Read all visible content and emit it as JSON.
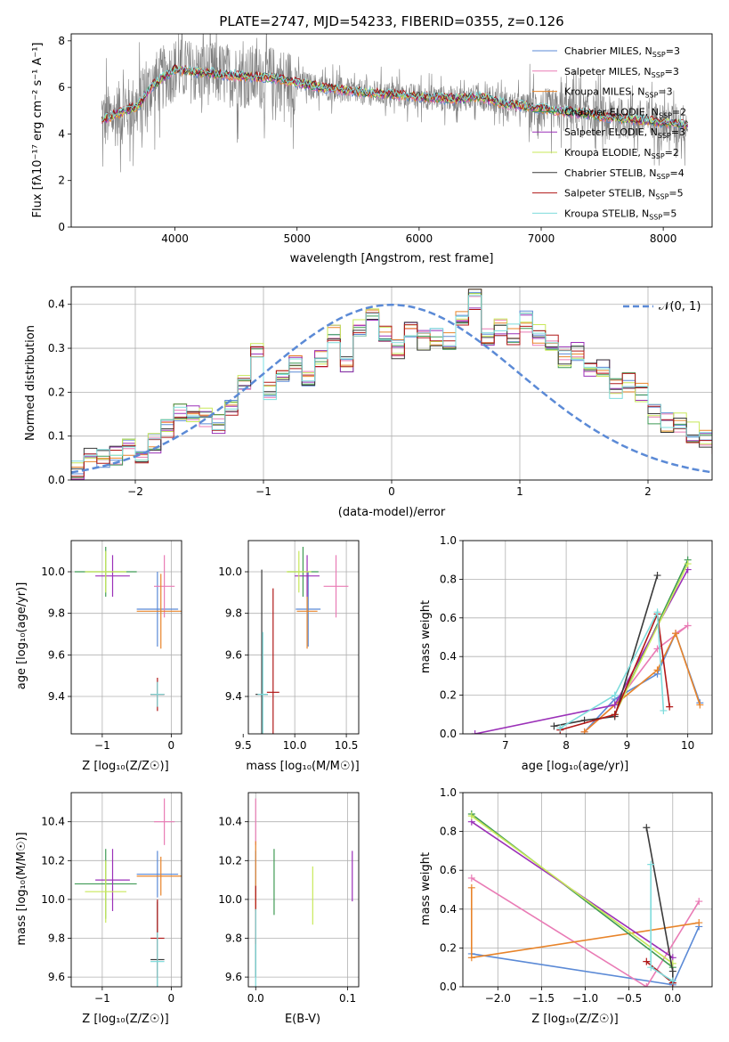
{
  "figure": {
    "title": "PLATE=2747, MJD=54233, FIBERID=0355, z=0.126",
    "spectrum_xlabel": "wavelength [Angstrom, rest frame]",
    "spectrum_ylabel": "Flux [fλ10⁻¹⁷ erg cm⁻² s⁻¹ A⁻¹]",
    "resid_xlabel": "(data-model)/error",
    "resid_ylabel": "Normed distribution",
    "resid_legend": "𝒩(0, 1)",
    "age_label": "age  [log₁₀(age/yr)]",
    "z_label": "Z [log₁₀(Z/Z☉)]",
    "mass_label": "mass [log₁₀(M/M☉)]",
    "ebv_label": "E(B-V)",
    "weight_label": "mass weight"
  },
  "models": [
    {
      "name": "Chabrier MILES, N_SSP=3",
      "color": "#5b8ad6"
    },
    {
      "name": "Salpeter MILES, N_SSP=3",
      "color": "#e97bb5"
    },
    {
      "name": "Kroupa MILES, N_SSP=3",
      "color": "#e8842a"
    },
    {
      "name": "Chabrier ELODIE, N_SSP=2",
      "color": "#3f9a54"
    },
    {
      "name": "Salpeter ELODIE, N_SSP=3",
      "color": "#9b30b8"
    },
    {
      "name": "Kroupa ELODIE, N_SSP=2",
      "color": "#c8e85a"
    },
    {
      "name": "Chabrier STELIB, N_SSP=4",
      "color": "#3a3a3a"
    },
    {
      "name": "Salpeter STELIB, N_SSP=5",
      "color": "#b01818"
    },
    {
      "name": "Kroupa STELIB, N_SSP=5",
      "color": "#7edcdc"
    }
  ],
  "chart_data": [
    {
      "type": "line",
      "name": "spectrum",
      "xlim": [
        3150,
        8400
      ],
      "ylim": [
        0,
        8.3
      ],
      "xticks": [
        4000,
        5000,
        6000,
        7000,
        8000
      ],
      "yticks": [
        0,
        2,
        4,
        6,
        8
      ],
      "data_series": {
        "name": "data",
        "color": "#808080"
      },
      "model_continuum": {
        "x": [
          3400,
          3600,
          3700,
          3800,
          3900,
          4000,
          4100,
          4300,
          4500,
          4800,
          5000,
          5200,
          5500,
          6000,
          6300,
          6500,
          6700,
          7000,
          7300,
          7600,
          8000,
          8200
        ],
        "y": [
          4.6,
          5.0,
          5.2,
          6.0,
          6.4,
          6.8,
          6.7,
          6.6,
          6.5,
          6.4,
          6.2,
          6.0,
          5.8,
          5.6,
          5.5,
          5.6,
          5.3,
          5.1,
          4.9,
          4.7,
          4.5,
          4.4
        ]
      }
    },
    {
      "type": "line",
      "name": "residual-distribution",
      "xlim": [
        -2.5,
        2.5
      ],
      "ylim": [
        0,
        0.44
      ],
      "xticks": [
        -2,
        -1,
        0,
        1,
        2
      ],
      "yticks": [
        0.0,
        0.1,
        0.2,
        0.3,
        0.4
      ],
      "bin_width": 0.1,
      "bin_start": -2.5,
      "histogram": [
        0.025,
        0.055,
        0.05,
        0.055,
        0.075,
        0.06,
        0.085,
        0.115,
        0.15,
        0.155,
        0.14,
        0.13,
        0.165,
        0.215,
        0.29,
        0.2,
        0.245,
        0.27,
        0.23,
        0.275,
        0.335,
        0.26,
        0.35,
        0.385,
        0.33,
        0.3,
        0.35,
        0.32,
        0.33,
        0.32,
        0.36,
        0.41,
        0.33,
        0.35,
        0.33,
        0.36,
        0.33,
        0.31,
        0.28,
        0.29,
        0.26,
        0.25,
        0.21,
        0.22,
        0.2,
        0.15,
        0.13,
        0.13,
        0.11,
        0.09,
        0.085
      ],
      "normal_curve": {
        "name": "𝒩(0, 1)",
        "mean": 0,
        "sigma": 1,
        "color": "#5b8ad6"
      }
    },
    {
      "type": "scatter",
      "name": "age-vs-metallicity",
      "xlim": [
        -1.45,
        0.15
      ],
      "ylim": [
        9.22,
        10.15
      ],
      "xticks": [
        -1,
        0
      ],
      "yticks": [
        9.4,
        9.6,
        9.8,
        10.0
      ],
      "points": [
        {
          "x": -0.2,
          "y": 9.82,
          "xerr": 0.3,
          "yerr": 0.18,
          "model": 0
        },
        {
          "x": -0.1,
          "y": 9.93,
          "xerr": 0.15,
          "yerr": 0.15,
          "model": 1
        },
        {
          "x": -0.15,
          "y": 9.81,
          "xerr": 0.35,
          "yerr": 0.18,
          "model": 2
        },
        {
          "x": -0.95,
          "y": 10.0,
          "xerr": 0.45,
          "yerr": 0.12,
          "model": 3
        },
        {
          "x": -0.85,
          "y": 9.98,
          "xerr": 0.25,
          "yerr": 0.1,
          "model": 4
        },
        {
          "x": -0.95,
          "y": 10.0,
          "xerr": 0.3,
          "yerr": 0.1,
          "model": 5
        },
        {
          "x": -0.2,
          "y": 9.41,
          "xerr": 0.1,
          "yerr": 0.06,
          "model": 6
        },
        {
          "x": -0.2,
          "y": 9.41,
          "xerr": 0.1,
          "yerr": 0.08,
          "model": 7
        },
        {
          "x": -0.2,
          "y": 9.41,
          "xerr": 0.1,
          "yerr": 0.06,
          "model": 8
        }
      ]
    },
    {
      "type": "scatter",
      "name": "age-vs-mass",
      "xlim": [
        9.55,
        10.62
      ],
      "ylim": [
        9.22,
        10.15
      ],
      "xticks": [
        9.5,
        10.0,
        10.5
      ],
      "yticks": [
        9.4,
        9.6,
        9.8,
        10.0
      ],
      "points": [
        {
          "x": 10.13,
          "y": 9.82,
          "xerr": 0.12,
          "yerr": 0.18,
          "model": 0
        },
        {
          "x": 10.4,
          "y": 9.93,
          "xerr": 0.12,
          "yerr": 0.15,
          "model": 1
        },
        {
          "x": 10.12,
          "y": 9.81,
          "xerr": 0.1,
          "yerr": 0.18,
          "model": 2
        },
        {
          "x": 10.08,
          "y": 10.0,
          "xerr": 0.15,
          "yerr": 0.12,
          "model": 3
        },
        {
          "x": 10.12,
          "y": 9.98,
          "xerr": 0.12,
          "yerr": 0.1,
          "model": 4
        },
        {
          "x": 10.04,
          "y": 10.0,
          "xerr": 0.12,
          "yerr": 0.1,
          "model": 5
        },
        {
          "x": 9.68,
          "y": 9.41,
          "xerr": 0.06,
          "yerr": 0.6,
          "model": 6
        },
        {
          "x": 9.79,
          "y": 9.42,
          "xerr": 0.06,
          "yerr": 0.5,
          "model": 7
        },
        {
          "x": 9.69,
          "y": 9.41,
          "xerr": 0.05,
          "yerr": 0.3,
          "model": 8
        }
      ]
    },
    {
      "type": "line",
      "name": "weight-vs-age",
      "xlim": [
        6.3,
        10.4
      ],
      "ylim": [
        0,
        1.0
      ],
      "xticks": [
        7,
        8,
        9,
        10
      ],
      "yticks": [
        0.0,
        0.2,
        0.4,
        0.6,
        0.8,
        1.0
      ],
      "series": [
        {
          "model": 0,
          "x": [
            8.3,
            8.8,
            9.5,
            9.8,
            10.2
          ],
          "y": [
            0.01,
            0.18,
            0.31,
            0.52,
            0.16
          ]
        },
        {
          "model": 1,
          "x": [
            8.3,
            8.8,
            9.5,
            10.0,
            9.8
          ],
          "y": [
            0.01,
            0.15,
            0.44,
            0.56,
            0.52
          ]
        },
        {
          "model": 2,
          "x": [
            8.3,
            8.8,
            9.5,
            9.8,
            10.2
          ],
          "y": [
            0.01,
            0.15,
            0.33,
            0.52,
            0.15
          ]
        },
        {
          "model": 3,
          "x": [
            8.8,
            10.0
          ],
          "y": [
            0.1,
            0.9
          ]
        },
        {
          "model": 4,
          "x": [
            6.5,
            8.8,
            10.0
          ],
          "y": [
            0.0,
            0.15,
            0.85
          ]
        },
        {
          "model": 5,
          "x": [
            8.8,
            10.0
          ],
          "y": [
            0.1,
            0.88
          ]
        },
        {
          "model": 6,
          "x": [
            7.8,
            8.3,
            8.8,
            9.5
          ],
          "y": [
            0.04,
            0.07,
            0.09,
            0.82
          ]
        },
        {
          "model": 7,
          "x": [
            7.9,
            8.8,
            9.5,
            9.7
          ],
          "y": [
            0.02,
            0.1,
            0.62,
            0.14
          ]
        },
        {
          "model": 8,
          "x": [
            7.9,
            8.8,
            9.5,
            9.6
          ],
          "y": [
            0.03,
            0.2,
            0.63,
            0.12
          ]
        }
      ]
    },
    {
      "type": "scatter",
      "name": "mass-vs-metallicity",
      "xlim": [
        -1.45,
        0.15
      ],
      "ylim": [
        9.55,
        10.55
      ],
      "xticks": [
        -1,
        0
      ],
      "yticks": [
        9.6,
        9.8,
        10.0,
        10.2,
        10.4
      ],
      "points": [
        {
          "x": -0.2,
          "y": 10.13,
          "xerr": 0.3,
          "yerr": 0.12,
          "model": 0
        },
        {
          "x": -0.1,
          "y": 10.4,
          "xerr": 0.15,
          "yerr": 0.12,
          "model": 1
        },
        {
          "x": -0.15,
          "y": 10.12,
          "xerr": 0.35,
          "yerr": 0.1,
          "model": 2
        },
        {
          "x": -0.95,
          "y": 10.08,
          "xerr": 0.45,
          "yerr": 0.18,
          "model": 3
        },
        {
          "x": -0.85,
          "y": 10.1,
          "xerr": 0.25,
          "yerr": 0.16,
          "model": 4
        },
        {
          "x": -0.95,
          "y": 10.04,
          "xerr": 0.3,
          "yerr": 0.16,
          "model": 5
        },
        {
          "x": -0.2,
          "y": 9.69,
          "xerr": 0.1,
          "yerr": 0.3,
          "model": 6
        },
        {
          "x": -0.2,
          "y": 9.8,
          "xerr": 0.1,
          "yerr": 0.2,
          "model": 7
        },
        {
          "x": -0.2,
          "y": 9.68,
          "xerr": 0.1,
          "yerr": 0.15,
          "model": 8
        }
      ]
    },
    {
      "type": "scatter",
      "name": "mass-vs-ebv",
      "xlim": [
        -0.008,
        0.112
      ],
      "ylim": [
        9.55,
        10.55
      ],
      "xticks": [
        0.0,
        0.1
      ],
      "yticks": [
        9.6,
        9.8,
        10.0,
        10.2,
        10.4
      ],
      "points": [
        {
          "x": 0.0,
          "y": 10.13,
          "yerr": 0.12,
          "model": 0
        },
        {
          "x": 0.0,
          "y": 10.4,
          "yerr": 0.12,
          "model": 1
        },
        {
          "x": 0.0,
          "y": 10.12,
          "yerr": 0.18,
          "model": 2
        },
        {
          "x": 0.02,
          "y": 10.09,
          "yerr": 0.17,
          "model": 3
        },
        {
          "x": 0.105,
          "y": 10.12,
          "yerr": 0.13,
          "model": 4
        },
        {
          "x": 0.062,
          "y": 10.02,
          "yerr": 0.15,
          "model": 5
        },
        {
          "x": 0.0,
          "y": 9.7,
          "yerr": 0.1,
          "model": 6
        },
        {
          "x": 0.0,
          "y": 9.92,
          "yerr": 0.15,
          "model": 7
        },
        {
          "x": 0.0,
          "y": 9.75,
          "yerr": 0.2,
          "model": 8
        }
      ]
    },
    {
      "type": "line",
      "name": "weight-vs-metallicity",
      "xlim": [
        -2.4,
        0.45
      ],
      "ylim": [
        0,
        1.0
      ],
      "xticks": [
        -2.0,
        -1.5,
        -1.0,
        -0.5,
        0.0
      ],
      "yticks": [
        0.0,
        0.2,
        0.4,
        0.6,
        0.8,
        1.0
      ],
      "series": [
        {
          "model": 0,
          "x": [
            -2.3,
            0.0,
            0.3
          ],
          "y": [
            0.17,
            0.01,
            0.31
          ]
        },
        {
          "model": 1,
          "x": [
            -2.3,
            -0.3,
            0.3
          ],
          "y": [
            0.56,
            0.0,
            0.44
          ]
        },
        {
          "model": 2,
          "x": [
            -2.3,
            -2.3,
            0.3
          ],
          "y": [
            0.51,
            0.15,
            0.33
          ]
        },
        {
          "model": 3,
          "x": [
            -2.3,
            0.0
          ],
          "y": [
            0.89,
            0.1
          ]
        },
        {
          "model": 4,
          "x": [
            -2.3,
            0.0
          ],
          "y": [
            0.85,
            0.15
          ]
        },
        {
          "model": 5,
          "x": [
            -2.3,
            0.0
          ],
          "y": [
            0.88,
            0.12
          ]
        },
        {
          "model": 6,
          "x": [
            -0.3,
            0.0,
            0.0
          ],
          "y": [
            0.82,
            0.08,
            0.02
          ]
        },
        {
          "model": 7,
          "x": [
            -0.3,
            0.0
          ],
          "y": [
            0.13,
            0.02
          ]
        },
        {
          "model": 8,
          "x": [
            -0.25,
            -0.25,
            0.0
          ],
          "y": [
            0.63,
            0.1,
            0.03
          ]
        }
      ]
    }
  ]
}
